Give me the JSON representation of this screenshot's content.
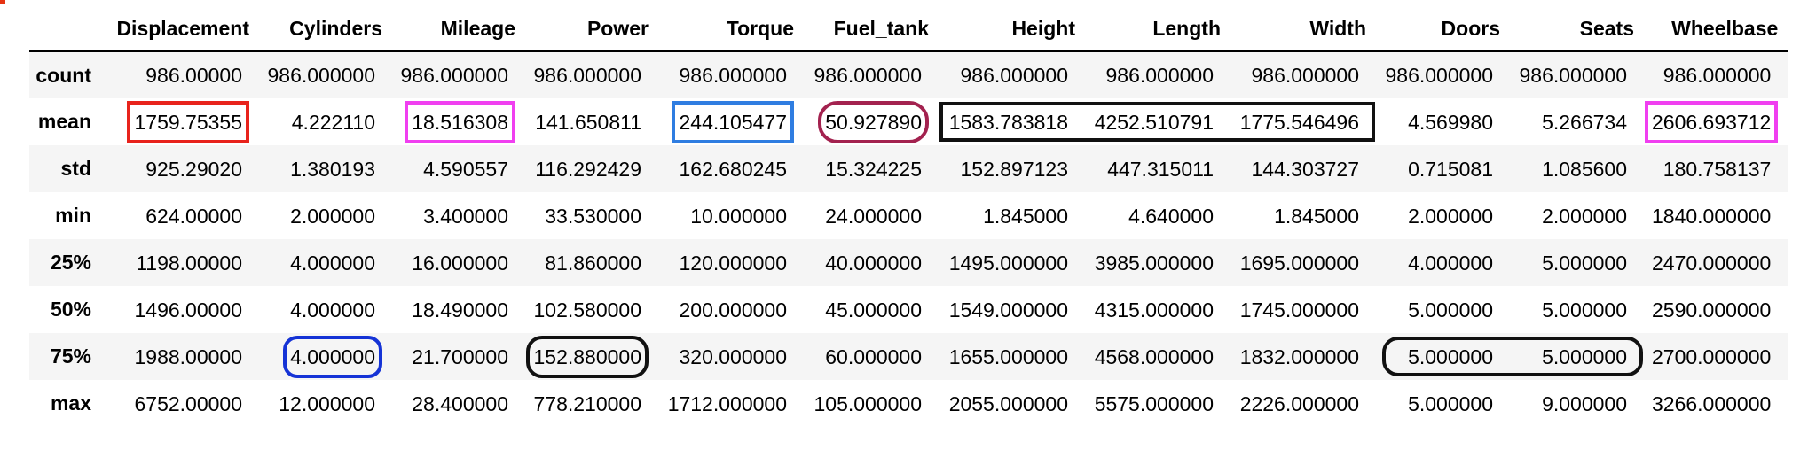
{
  "table": {
    "columns": [
      "Displacement",
      "Cylinders",
      "Mileage",
      "Power",
      "Torque",
      "Fuel_tank",
      "Height",
      "Length",
      "Width",
      "Doors",
      "Seats",
      "Wheelbase"
    ],
    "rows": [
      {
        "label": "count",
        "values": [
          "986.00000",
          "986.000000",
          "986.000000",
          "986.000000",
          "986.000000",
          "986.000000",
          "986.000000",
          "986.000000",
          "986.000000",
          "986.000000",
          "986.000000",
          "986.000000"
        ]
      },
      {
        "label": "mean",
        "values": [
          "1759.75355",
          "4.222110",
          "18.516308",
          "141.650811",
          "244.105477",
          "50.927890",
          "1583.783818",
          "4252.510791",
          "1775.546496",
          "4.569980",
          "5.266734",
          "2606.693712"
        ]
      },
      {
        "label": "std",
        "values": [
          "925.29020",
          "1.380193",
          "4.590557",
          "116.292429",
          "162.680245",
          "15.324225",
          "152.897123",
          "447.315011",
          "144.303727",
          "0.715081",
          "1.085600",
          "180.758137"
        ]
      },
      {
        "label": "min",
        "values": [
          "624.00000",
          "2.000000",
          "3.400000",
          "33.530000",
          "10.000000",
          "24.000000",
          "1.845000",
          "4.640000",
          "1.845000",
          "2.000000",
          "2.000000",
          "1840.000000"
        ]
      },
      {
        "label": "25%",
        "values": [
          "1198.00000",
          "4.000000",
          "16.000000",
          "81.860000",
          "120.000000",
          "40.000000",
          "1495.000000",
          "3985.000000",
          "1695.000000",
          "4.000000",
          "5.000000",
          "2470.000000"
        ]
      },
      {
        "label": "50%",
        "values": [
          "1496.00000",
          "4.000000",
          "18.490000",
          "102.580000",
          "200.000000",
          "45.000000",
          "1549.000000",
          "4315.000000",
          "1745.000000",
          "5.000000",
          "5.000000",
          "2590.000000"
        ]
      },
      {
        "label": "75%",
        "values": [
          "1988.00000",
          "4.000000",
          "21.700000",
          "152.880000",
          "320.000000",
          "60.000000",
          "1655.000000",
          "4568.000000",
          "1832.000000",
          "5.000000",
          "5.000000",
          "2700.000000"
        ]
      },
      {
        "label": "max",
        "values": [
          "6752.00000",
          "12.000000",
          "28.400000",
          "778.210000",
          "1712.000000",
          "105.000000",
          "2055.000000",
          "5575.000000",
          "2226.000000",
          "5.000000",
          "9.000000",
          "3266.000000"
        ]
      }
    ]
  },
  "highlight_colors": {
    "red": "#e8231c",
    "magenta": "#f03ff0",
    "blue": "#2f7de1",
    "dark_red": "#a3224f",
    "navy": "#1533d6",
    "black": "#111111"
  }
}
